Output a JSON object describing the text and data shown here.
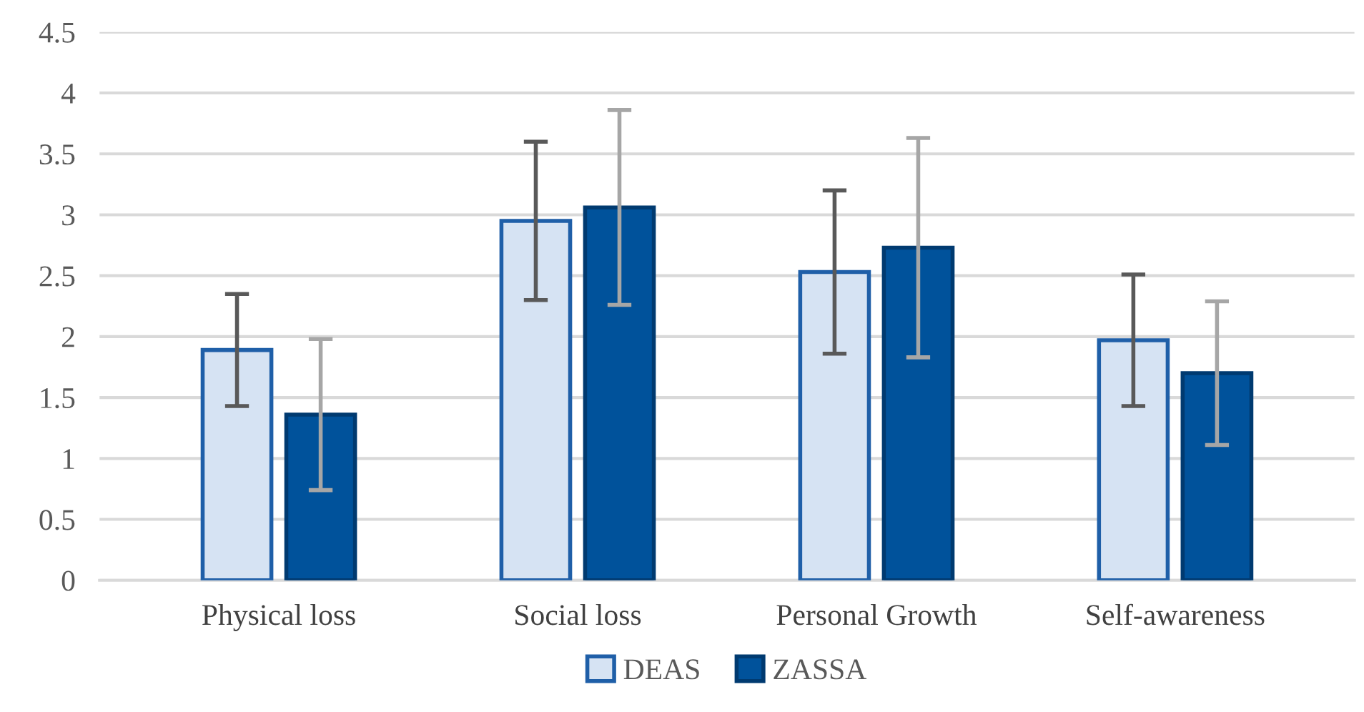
{
  "chart_data": {
    "type": "bar",
    "categories": [
      "Physical loss",
      "Social loss",
      "Personal Growth",
      "Self-awareness"
    ],
    "series": [
      {
        "name": "DEAS",
        "color": "#d6e3f3",
        "values": [
          1.89,
          2.95,
          2.53,
          1.97
        ],
        "errors": [
          0.46,
          0.65,
          0.67,
          0.54
        ]
      },
      {
        "name": "ZASSA",
        "color": "#00529b",
        "values": [
          1.36,
          3.06,
          2.73,
          1.7
        ],
        "errors": [
          0.62,
          0.8,
          0.9,
          0.59
        ]
      }
    ],
    "ylim": [
      0,
      4.5
    ],
    "yticks": [
      0,
      0.5,
      1,
      1.5,
      2,
      2.5,
      3,
      3.5,
      4,
      4.5
    ],
    "grid": "y",
    "legend": "bottom"
  }
}
